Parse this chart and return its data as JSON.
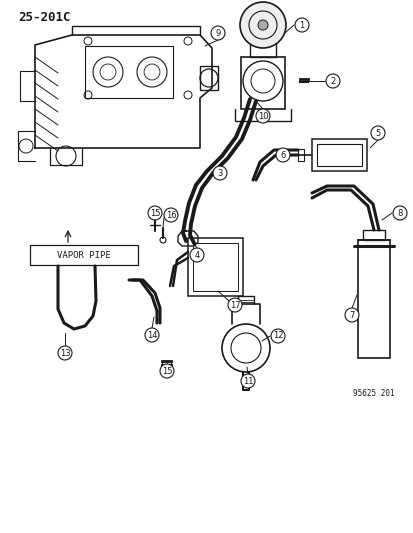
{
  "title": "25-201C",
  "diagram_id": "95625 201",
  "bg_color": "#ffffff",
  "line_color": "#1a1a1a",
  "vapor_pipe_label": "VAPOR PIPE",
  "fig_width": 4.14,
  "fig_height": 5.33,
  "dpi": 100
}
